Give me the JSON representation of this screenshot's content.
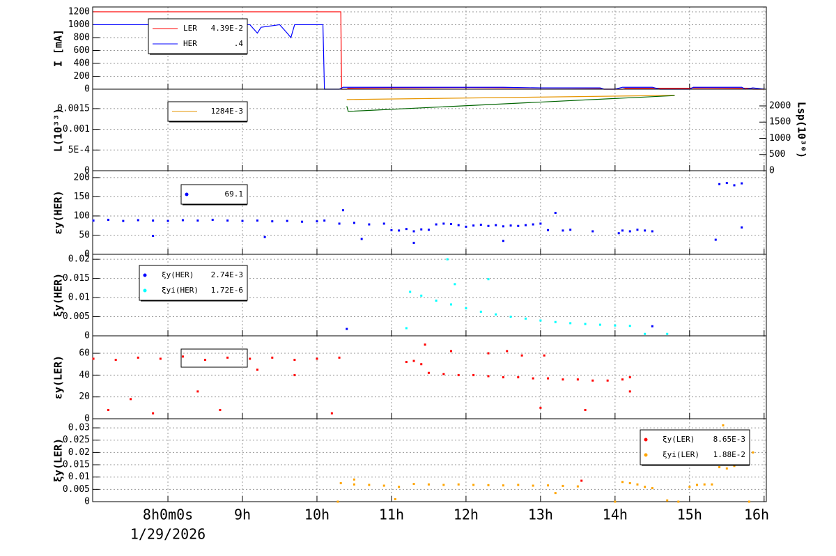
{
  "chart_data": [
    {
      "type": "line",
      "ylabel": "I [mA]",
      "ylim": [
        0,
        1275
      ],
      "yticks": [
        0,
        200,
        400,
        600,
        800,
        1000,
        1200
      ],
      "series": [
        {
          "name": "LER",
          "legend_value": "4.39E-2",
          "color": "#ff0000",
          "x": [
            7.0,
            10.32,
            10.33,
            10.4,
            10.42,
            11.0,
            12.0,
            13.0,
            13.8,
            13.85,
            14.1,
            14.15,
            15.0,
            15.05,
            15.8,
            15.85,
            16.0
          ],
          "values": [
            1200,
            1200,
            0,
            0,
            15,
            20,
            25,
            20,
            15,
            0,
            0,
            15,
            15,
            20,
            15,
            0,
            0
          ]
        },
        {
          "name": "HER",
          "legend_value": ".4",
          "color": "#0000ff",
          "x": [
            7.0,
            9.1,
            9.2,
            9.25,
            9.5,
            9.6,
            9.65,
            9.7,
            10.08,
            10.1,
            10.3,
            10.35,
            12.5,
            13.0,
            13.8,
            13.85,
            14.0,
            14.1,
            14.5,
            14.6,
            15.0,
            15.05,
            15.7,
            15.75,
            15.85,
            16.0
          ],
          "values": [
            1000,
            1000,
            870,
            960,
            1000,
            870,
            800,
            1000,
            1000,
            0,
            0,
            30,
            30,
            20,
            20,
            0,
            0,
            30,
            30,
            0,
            0,
            30,
            30,
            0,
            20,
            0
          ]
        }
      ]
    },
    {
      "type": "line",
      "ylabel": "L(10³³)",
      "ylim": [
        0,
        0.00197
      ],
      "yticks": [
        0,
        {
          "value": 0.0005,
          "label": "5E-4"
        },
        0.001,
        0.0015
      ],
      "y2label": "Lsp(10³⁰)",
      "y2lim": [
        0,
        2516
      ],
      "y2ticks": [
        0,
        500,
        1000,
        1500,
        2000
      ],
      "series": [
        {
          "legend_value": "1284E-3",
          "color": "#e69500",
          "x": [
            10.4,
            14.8
          ],
          "values": [
            0.00172,
            0.00182
          ]
        },
        {
          "color": "#006400",
          "axis": "y2",
          "x": [
            10.4,
            10.42,
            14.8
          ],
          "values": [
            1990,
            1830,
            2318
          ]
        }
      ]
    },
    {
      "type": "scatter",
      "ylabel": "εy(HER)",
      "ylim": [
        0,
        218
      ],
      "yticks": [
        0,
        50,
        100,
        150,
        200
      ],
      "series": [
        {
          "legend_value": "69.1",
          "color": "#0000ff",
          "x": [
            7.0,
            7.2,
            7.4,
            7.6,
            7.8,
            8.0,
            8.2,
            8.4,
            8.6,
            8.8,
            9.0,
            9.2,
            9.4,
            9.6,
            9.8,
            10.0,
            10.1,
            7.8,
            9.3,
            10.3,
            10.35,
            10.5,
            10.6,
            10.7,
            10.9,
            11.0,
            11.1,
            11.2,
            11.3,
            11.4,
            11.5,
            11.6,
            11.7,
            11.8,
            11.9,
            12.0,
            12.1,
            12.2,
            12.3,
            12.4,
            12.5,
            12.6,
            12.7,
            12.8,
            12.9,
            13.0,
            13.1,
            13.2,
            13.3,
            13.4,
            13.7,
            14.1,
            14.2,
            14.3,
            14.4,
            14.5,
            15.4,
            15.5,
            15.6,
            15.7,
            15.35,
            14.05,
            11.3,
            12.5,
            15.7
          ],
          "values": [
            88,
            90,
            87,
            89,
            88,
            87,
            89,
            88,
            90,
            88,
            87,
            88,
            86,
            87,
            85,
            86,
            88,
            48,
            45,
            80,
            115,
            82,
            40,
            78,
            80,
            63,
            62,
            66,
            60,
            65,
            64,
            78,
            80,
            79,
            76,
            72,
            75,
            77,
            74,
            76,
            73,
            75,
            74,
            76,
            78,
            80,
            63,
            108,
            62,
            64,
            60,
            62,
            60,
            64,
            62,
            60,
            183,
            186,
            180,
            185,
            38,
            55,
            30,
            35,
            70
          ]
        }
      ]
    },
    {
      "type": "scatter",
      "ylabel": "ξy(HER)",
      "ylim": [
        0,
        0.0213
      ],
      "yticks": [
        0,
        0.005,
        0.01,
        0.015,
        0.02
      ],
      "series": [
        {
          "name": "ξy(HER)",
          "legend_value": "2.74E-3",
          "color": "#0000ff",
          "x": [
            10.4,
            14.5
          ],
          "values": [
            0.0018,
            0.0025
          ]
        },
        {
          "name": "ξyi(HER)",
          "legend_value": "1.72E-6",
          "color": "#00ffff",
          "x": [
            11.25,
            11.4,
            11.6,
            11.8,
            12.0,
            12.2,
            12.4,
            12.6,
            12.8,
            13.0,
            13.2,
            13.4,
            13.6,
            13.8,
            14.0,
            14.2,
            11.2,
            11.75,
            11.85,
            12.3,
            14.4,
            14.7
          ],
          "values": [
            0.0115,
            0.0105,
            0.0092,
            0.0082,
            0.0072,
            0.0063,
            0.0056,
            0.005,
            0.0045,
            0.004,
            0.0036,
            0.0033,
            0.0031,
            0.0029,
            0.0027,
            0.0026,
            0.002,
            0.02,
            0.0135,
            0.0148,
            0.0005,
            0.0005
          ]
        }
      ]
    },
    {
      "type": "scatter",
      "ylabel": "εy(LER)",
      "ylim": [
        0,
        76
      ],
      "yticks": [
        0,
        20,
        40,
        60
      ],
      "series": [
        {
          "color": "#ff0000",
          "x": [
            7.0,
            7.3,
            7.6,
            7.9,
            8.2,
            8.5,
            8.8,
            9.1,
            9.4,
            9.7,
            10.0,
            10.3,
            7.2,
            7.5,
            7.8,
            8.4,
            8.7,
            9.2,
            9.7,
            10.2,
            11.2,
            11.3,
            11.4,
            11.5,
            11.7,
            11.9,
            12.1,
            12.3,
            12.5,
            12.7,
            12.9,
            13.1,
            13.3,
            13.5,
            13.7,
            13.9,
            14.1,
            14.2,
            11.45,
            11.8,
            12.3,
            12.55,
            12.75,
            13.05,
            13.0,
            13.6,
            14.2
          ],
          "values": [
            55,
            54,
            56,
            55,
            57,
            54,
            56,
            55,
            56,
            54,
            55,
            56,
            8,
            18,
            5,
            25,
            8,
            45,
            40,
            5,
            52,
            53,
            50,
            42,
            41,
            40,
            40,
            39,
            38,
            38,
            37,
            37,
            36,
            36,
            35,
            35,
            36,
            38,
            68,
            62,
            60,
            62,
            58,
            58,
            10,
            8,
            25
          ]
        }
      ]
    },
    {
      "type": "scatter",
      "ylabel": "ξy(LER)",
      "ylim": [
        0,
        0.0337
      ],
      "yticks": [
        0,
        0.005,
        0.01,
        0.015,
        0.02,
        0.025,
        0.03
      ],
      "xlim": [
        6.99,
        16.03
      ],
      "xticks": [
        {
          "value": 8,
          "label": "8h0m0s"
        },
        {
          "value": 9,
          "label": "9h"
        },
        {
          "value": 10,
          "label": "10h"
        },
        {
          "value": 11,
          "label": "11h"
        },
        {
          "value": 12,
          "label": "12h"
        },
        {
          "value": 13,
          "label": "13h"
        },
        {
          "value": 14,
          "label": "14h"
        },
        {
          "value": 15,
          "label": "15h"
        },
        {
          "value": 16,
          "label": "16h"
        }
      ],
      "date_label": "1/29/2026",
      "series": [
        {
          "name": "ξy(LER)",
          "legend_value": "8.65E-3",
          "color": "#ff0000",
          "x": [
            13.55
          ],
          "values": [
            0.0085
          ]
        },
        {
          "name": "ξyi(LER)",
          "legend_value": "1.88E-2",
          "color": "#ffa500",
          "x": [
            10.28,
            10.32,
            10.5,
            10.7,
            10.9,
            11.1,
            11.3,
            11.5,
            11.7,
            11.9,
            12.1,
            12.3,
            12.5,
            12.7,
            12.9,
            13.1,
            13.3,
            13.5,
            14.0,
            14.1,
            14.2,
            14.3,
            14.4,
            14.5,
            14.85,
            15.0,
            15.1,
            15.2,
            15.3,
            15.4,
            15.5,
            15.6,
            15.7,
            15.8,
            15.85,
            10.5,
            11.05,
            13.2,
            14.7,
            15.45
          ],
          "values": [
            0,
            0.0075,
            0.007,
            0.0068,
            0.0065,
            0.006,
            0.0072,
            0.007,
            0.0068,
            0.007,
            0.0068,
            0.0067,
            0.0066,
            0.0068,
            0.0065,
            0.0066,
            0.0064,
            0.0062,
            0,
            0.008,
            0.0075,
            0.007,
            0.006,
            0.0055,
            0,
            0.006,
            0.0068,
            0.007,
            0.007,
            0.014,
            0.0135,
            0.0145,
            0.022,
            0,
            0.02,
            0.009,
            0.001,
            0.0035,
            0.0005,
            0.031
          ]
        }
      ]
    }
  ]
}
